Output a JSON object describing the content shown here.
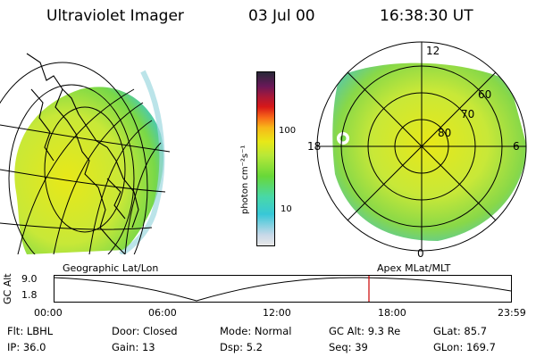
{
  "header": {
    "instrument": "Ultraviolet Imager",
    "date": "03 Jul 00",
    "time": "16:38:30 UT"
  },
  "colorbar": {
    "unit_label": "photon cm⁻²s⁻¹",
    "ticks": [
      "100",
      "10"
    ],
    "colors": [
      "#e8e8e8",
      "#c8d8e8",
      "#38c8d8",
      "#48d8a8",
      "#68d838",
      "#b8e838",
      "#e8e818",
      "#f8b818",
      "#f86818",
      "#d81818",
      "#a81838",
      "#681858",
      "#282838"
    ]
  },
  "geo_panel": {
    "label": "Geographic Lat/Lon"
  },
  "polar_panel": {
    "label": "Apex MLat/MLT",
    "mlt_labels": {
      "top": "12",
      "left": "18",
      "right": "6",
      "bottom": "0"
    },
    "lat_labels": [
      "60",
      "70",
      "80"
    ]
  },
  "altitude_plot": {
    "ylabel": "GC Alt",
    "y_ticks": [
      "9.0",
      "1.8"
    ],
    "x_ticks": [
      "00:00",
      "06:00",
      "12:00",
      "18:00",
      "23:59"
    ],
    "current_time_marker": "16:38"
  },
  "info_rows": [
    [
      {
        "label": "Flt:",
        "value": "LBHL"
      },
      {
        "label": "Door:",
        "value": "Closed"
      },
      {
        "label": "Mode:",
        "value": "Normal"
      },
      {
        "label": "GC Alt:",
        "value": "9.3 Re"
      },
      {
        "label": "GLat:",
        "value": "85.7"
      }
    ],
    [
      {
        "label": "IP:",
        "value": "36.0"
      },
      {
        "label": "Gain:",
        "value": "13"
      },
      {
        "label": "Dsp:",
        "value": "5.2"
      },
      {
        "label": "Seq:",
        "value": "39"
      },
      {
        "label": "GLon:",
        "value": "169.7"
      }
    ]
  ]
}
